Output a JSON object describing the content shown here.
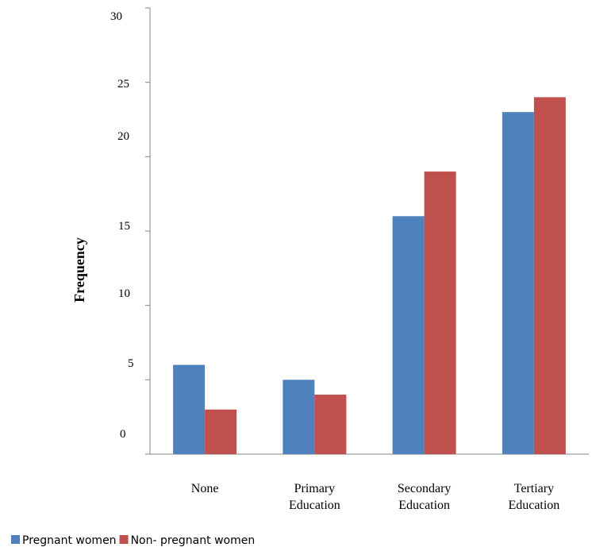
{
  "chart_data": {
    "type": "bar",
    "categories": [
      [
        "None"
      ],
      [
        "Primary",
        "Education"
      ],
      [
        "Secondary",
        "Education"
      ],
      [
        "Tertiary",
        "Education"
      ]
    ],
    "series": [
      {
        "name": "Pregnant women",
        "values": [
          6,
          5,
          16,
          23
        ],
        "color": "#4F81BD"
      },
      {
        "name": "Non- pregnant women",
        "values": [
          3,
          4,
          19,
          24
        ],
        "color": "#C0504D"
      }
    ],
    "yticks": [
      "0",
      "5",
      "10",
      "15",
      "20",
      "25",
      "30"
    ],
    "ylabel": "Frequency",
    "xlabel": "",
    "ylim": [
      0,
      30
    ],
    "legend": "bottom-left",
    "grid": false
  }
}
